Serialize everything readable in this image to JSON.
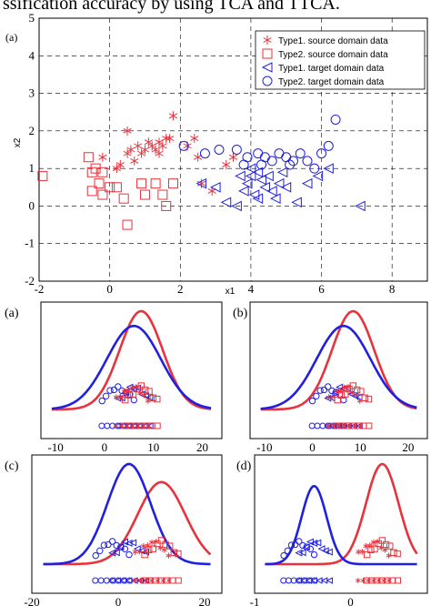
{
  "caption_fragment": "ssification accuracy by using TCA and TTCA.",
  "colors": {
    "red": "#e8323c",
    "blue": "#2020e0",
    "axis": "#000000"
  },
  "chart_data": [
    {
      "panel": "(a)",
      "type": "scatter",
      "xlabel": "x1",
      "ylabel": "x2",
      "xlim": [
        -2,
        9
      ],
      "ylim": [
        -2,
        5
      ],
      "xticks": [
        -2,
        0,
        2,
        4,
        6,
        8
      ],
      "yticks": [
        -2,
        -1,
        0,
        1,
        2,
        3,
        4,
        5
      ],
      "grid": true,
      "legend_position": "top-right",
      "series": [
        {
          "name": "Type1. source domain data",
          "marker": "star",
          "color": "red",
          "points": [
            [
              -0.2,
              1.3
            ],
            [
              0.2,
              1.0
            ],
            [
              0.3,
              1.1
            ],
            [
              0.5,
              1.4
            ],
            [
              0.6,
              1.5
            ],
            [
              0.7,
              1.2
            ],
            [
              0.8,
              1.6
            ],
            [
              0.9,
              1.4
            ],
            [
              1.0,
              1.5
            ],
            [
              1.1,
              1.7
            ],
            [
              1.2,
              1.6
            ],
            [
              1.3,
              1.5
            ],
            [
              1.4,
              1.7
            ],
            [
              1.5,
              1.6
            ],
            [
              1.6,
              1.8
            ],
            [
              1.8,
              2.4
            ],
            [
              2.2,
              1.6
            ],
            [
              2.4,
              1.8
            ],
            [
              2.5,
              1.3
            ],
            [
              2.6,
              0.6
            ],
            [
              2.9,
              0.4
            ],
            [
              3.3,
              1.1
            ],
            [
              3.5,
              1.3
            ],
            [
              0.5,
              2.0
            ],
            [
              1.4,
              1.4
            ],
            [
              1.7,
              1.8
            ]
          ]
        },
        {
          "name": "Type2. source domain data",
          "marker": "square",
          "color": "red",
          "points": [
            [
              -1.9,
              0.8
            ],
            [
              -0.6,
              1.3
            ],
            [
              -0.5,
              0.9
            ],
            [
              -0.5,
              0.4
            ],
            [
              -0.3,
              0.6
            ],
            [
              -0.2,
              0.3
            ],
            [
              0.0,
              0.5
            ],
            [
              0.2,
              0.5
            ],
            [
              0.4,
              0.2
            ],
            [
              0.5,
              -0.5
            ],
            [
              0.9,
              0.6
            ],
            [
              1.0,
              0.3
            ],
            [
              1.3,
              0.6
            ],
            [
              1.5,
              0.3
            ],
            [
              1.6,
              0.0
            ],
            [
              1.8,
              0.6
            ],
            [
              -0.4,
              1.0
            ],
            [
              -0.2,
              0.9
            ]
          ]
        },
        {
          "name": "Type1. target domain data",
          "marker": "triangle-left",
          "color": "blue",
          "points": [
            [
              2.6,
              0.6
            ],
            [
              3.0,
              0.5
            ],
            [
              3.3,
              0.1
            ],
            [
              3.6,
              0.0
            ],
            [
              3.8,
              0.4
            ],
            [
              3.9,
              0.6
            ],
            [
              4.0,
              0.8
            ],
            [
              4.1,
              0.3
            ],
            [
              4.2,
              0.9
            ],
            [
              4.3,
              0.7
            ],
            [
              4.4,
              0.5
            ],
            [
              4.5,
              0.8
            ],
            [
              4.6,
              0.4
            ],
            [
              4.7,
              0.2
            ],
            [
              4.8,
              0.6
            ],
            [
              4.9,
              0.9
            ],
            [
              5.0,
              0.5
            ],
            [
              5.3,
              0.1
            ],
            [
              5.6,
              0.6
            ],
            [
              5.9,
              0.8
            ],
            [
              6.2,
              1.0
            ],
            [
              7.1,
              0.0
            ],
            [
              4.2,
              0.2
            ],
            [
              3.7,
              0.8
            ],
            [
              4.0,
              1.0
            ]
          ]
        },
        {
          "name": "Type2. target domain data",
          "marker": "circle",
          "color": "blue",
          "points": [
            [
              2.1,
              1.6
            ],
            [
              2.7,
              1.4
            ],
            [
              3.1,
              1.5
            ],
            [
              3.6,
              1.5
            ],
            [
              3.9,
              1.3
            ],
            [
              4.2,
              1.4
            ],
            [
              4.4,
              1.3
            ],
            [
              4.6,
              1.2
            ],
            [
              4.8,
              1.4
            ],
            [
              5.0,
              1.3
            ],
            [
              5.2,
              1.2
            ],
            [
              5.4,
              1.4
            ],
            [
              5.6,
              1.2
            ],
            [
              5.8,
              1.0
            ],
            [
              6.0,
              1.4
            ],
            [
              6.2,
              1.6
            ],
            [
              6.4,
              2.3
            ],
            [
              4.3,
              1.1
            ],
            [
              5.1,
              1.1
            ],
            [
              3.8,
              1.1
            ]
          ]
        }
      ]
    },
    {
      "panel": "(a)",
      "type": "line",
      "xlim": [
        -13,
        24
      ],
      "xticks": [
        -10,
        0,
        10,
        20
      ],
      "grid": false,
      "series": [
        {
          "color": "red",
          "kind": "density",
          "mean": 7.5,
          "sd": 4.4,
          "peak": 1.0
        },
        {
          "color": "blue",
          "kind": "density",
          "mean": 6.0,
          "sd": 5.5,
          "peak": 0.85
        }
      ]
    },
    {
      "panel": "(b)",
      "type": "line",
      "xlim": [
        -13,
        24
      ],
      "xticks": [
        -10,
        0,
        10,
        20
      ],
      "grid": false,
      "series": [
        {
          "color": "red",
          "kind": "density",
          "mean": 8.5,
          "sd": 4.4,
          "peak": 1.0
        },
        {
          "color": "blue",
          "kind": "density",
          "mean": 6.5,
          "sd": 5.6,
          "peak": 0.85
        }
      ]
    },
    {
      "panel": "(c)",
      "type": "line",
      "xlim": [
        -20,
        24
      ],
      "xticks": [
        -20,
        0,
        20
      ],
      "grid": false,
      "series": [
        {
          "color": "red",
          "kind": "density",
          "mean": 10.0,
          "sd": 5.5,
          "peak": 0.82
        },
        {
          "color": "blue",
          "kind": "density",
          "mean": 2.5,
          "sd": 5.0,
          "peak": 1.0
        }
      ]
    },
    {
      "panel": "(d)",
      "type": "line",
      "xlim": [
        -1,
        0.8
      ],
      "xticks": [
        -1,
        0
      ],
      "grid": false,
      "series": [
        {
          "color": "red",
          "kind": "density",
          "mean": 0.33,
          "sd": 0.17,
          "peak": 1.0
        },
        {
          "color": "blue",
          "kind": "density",
          "mean": -0.38,
          "sd": 0.13,
          "peak": 0.78
        }
      ]
    }
  ]
}
